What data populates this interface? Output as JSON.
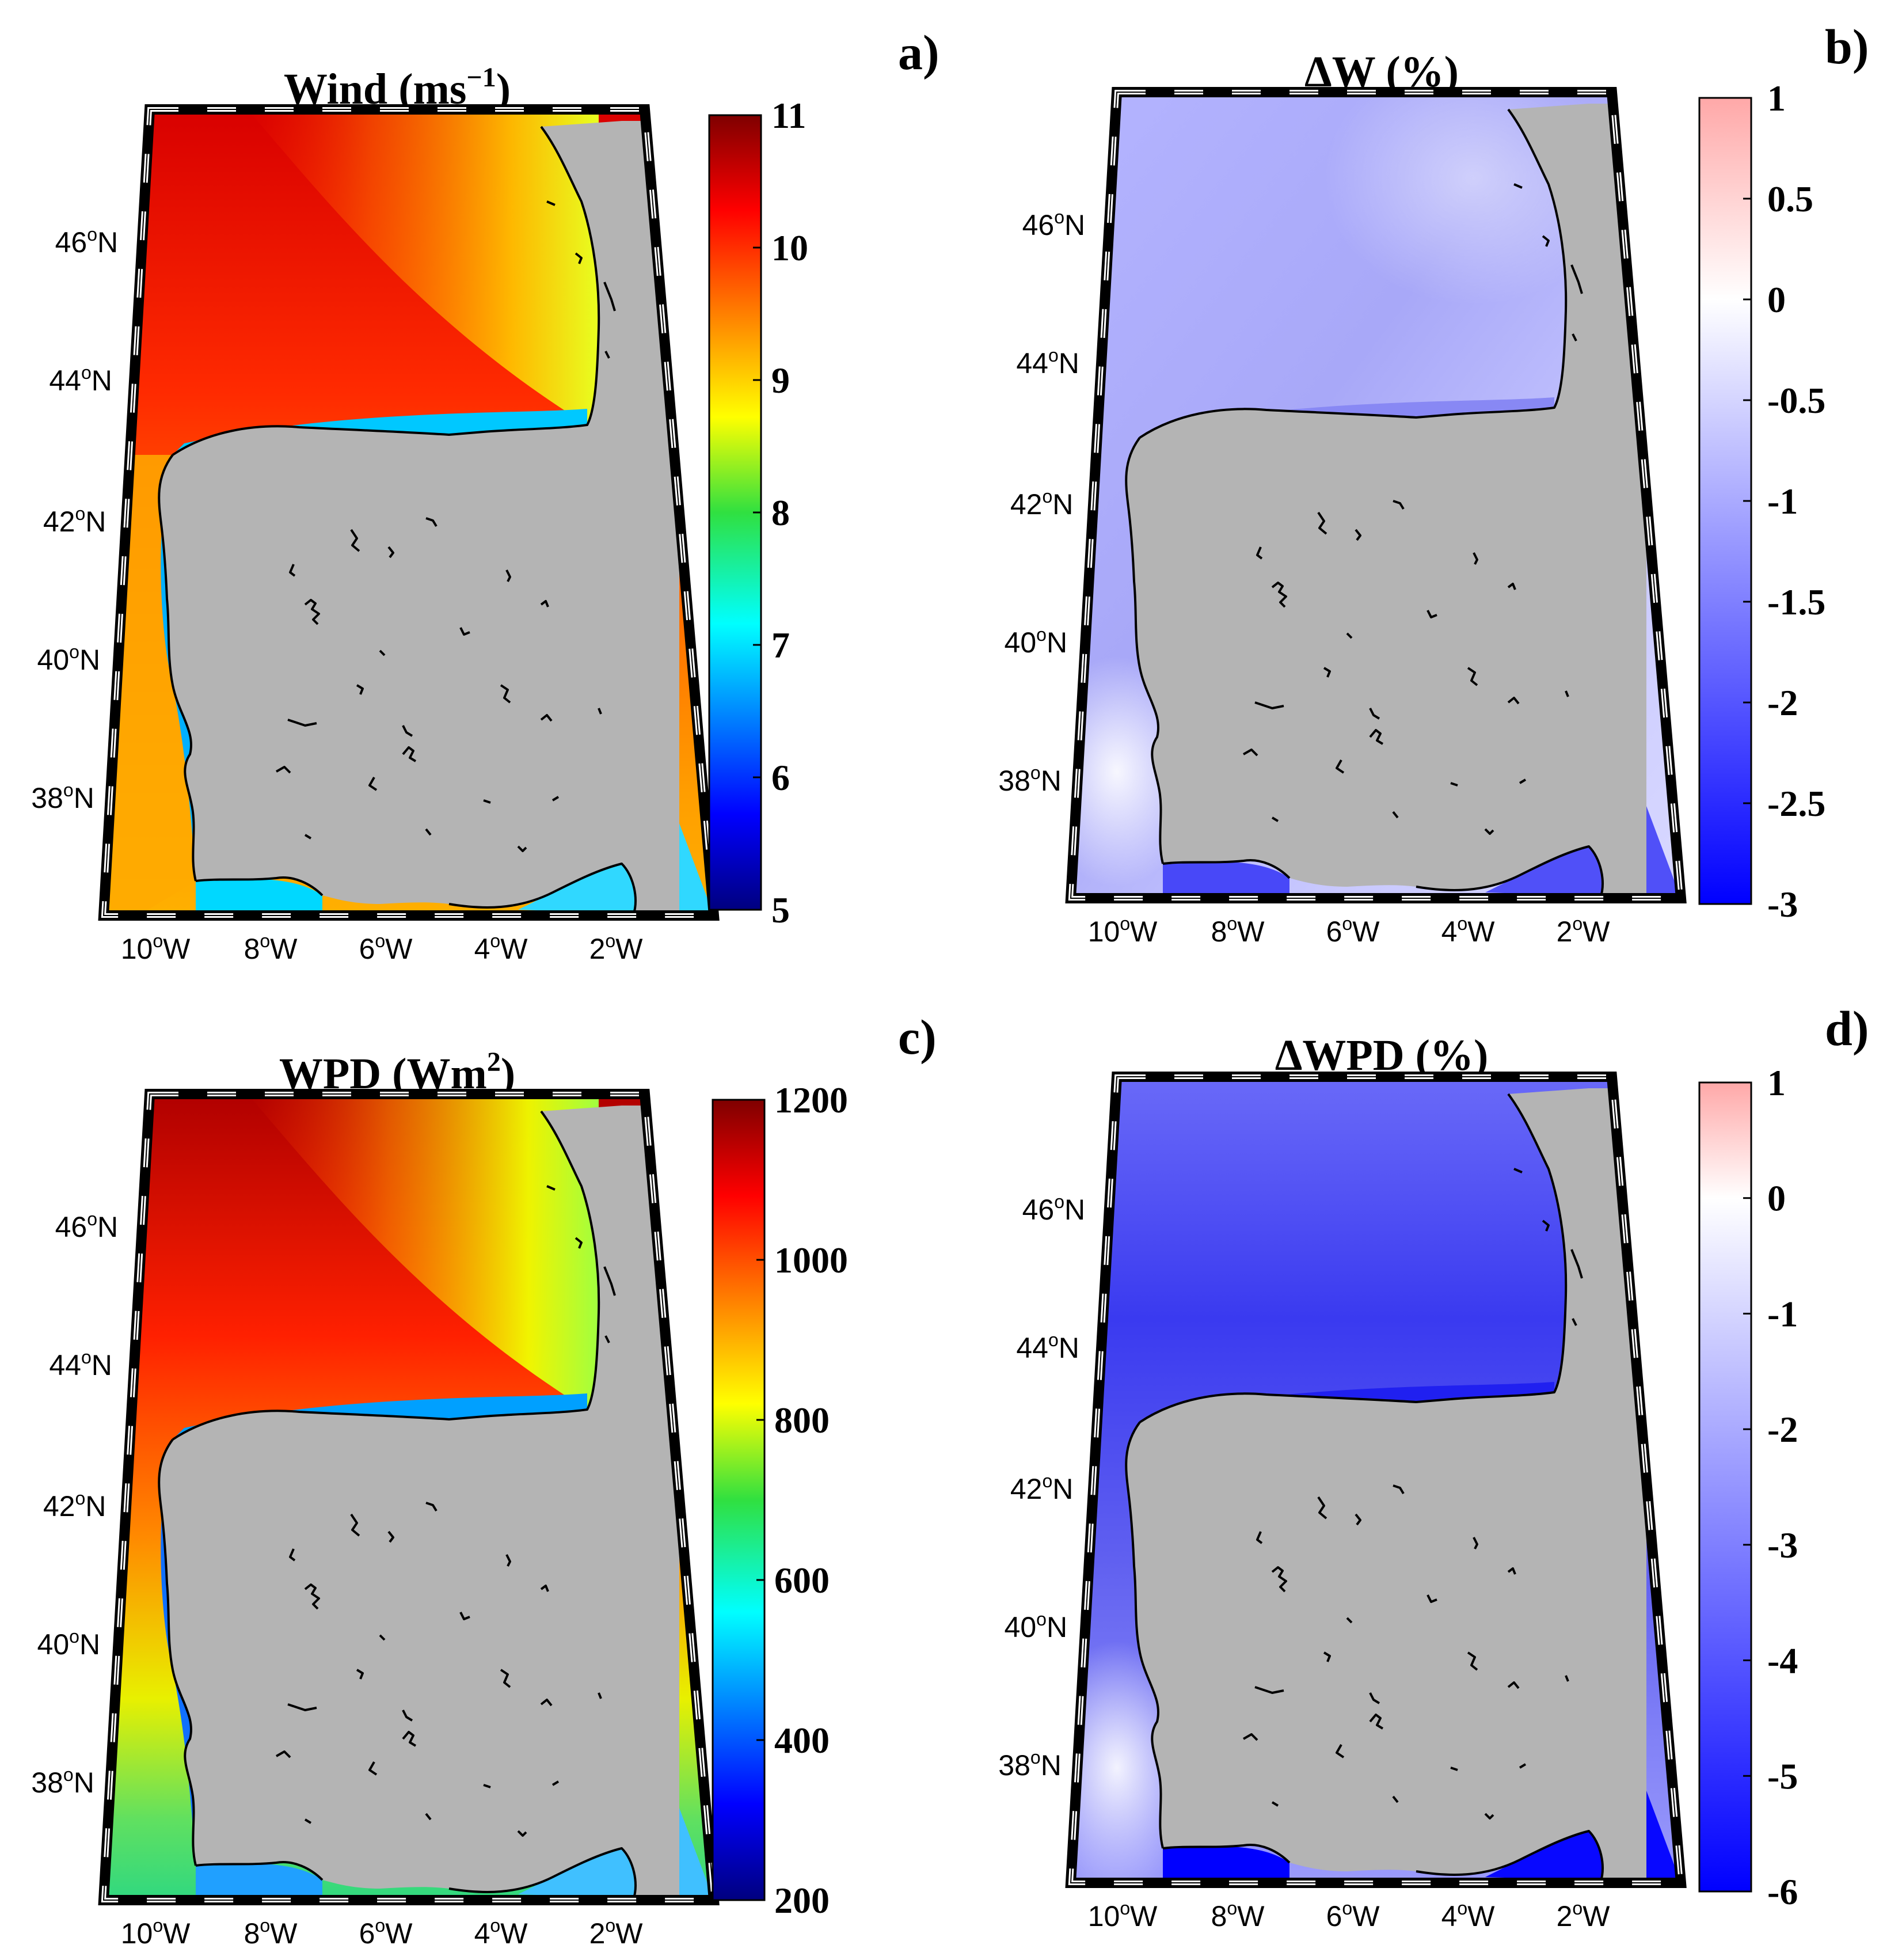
{
  "figure": {
    "panels": [
      {
        "id": "a",
        "label": "a)",
        "title_main": "Wind (ms",
        "title_sup": "−1",
        "title_end": ")",
        "colormap": "jet",
        "field": "wind",
        "colorbar": {
          "min": 5,
          "max": 11,
          "ticks": [
            "11",
            "10",
            "9",
            "8",
            "7",
            "6",
            "5"
          ]
        }
      },
      {
        "id": "b",
        "label": "b)",
        "title_main": "ΔW (%)",
        "title_sup": "",
        "title_end": "",
        "colormap": "bwr",
        "field": "dw",
        "colorbar": {
          "min": -3,
          "max": 1,
          "ticks": [
            "1",
            "0.5",
            "0",
            "-0.5",
            "-1",
            "-1.5",
            "-2",
            "-2.5",
            "-3"
          ]
        }
      },
      {
        "id": "c",
        "label": "c)",
        "title_main": "WPD (Wm",
        "title_sup": "2",
        "title_end": ")",
        "colormap": "jet",
        "field": "wpd",
        "colorbar": {
          "min": 200,
          "max": 1200,
          "ticks": [
            "1200",
            "1000",
            "800",
            "600",
            "400",
            "200"
          ]
        }
      },
      {
        "id": "d",
        "label": "d)",
        "title_main": "ΔWPD (%)",
        "title_sup": "",
        "title_end": "",
        "colormap": "bwr",
        "field": "dwpd",
        "colorbar": {
          "min": -6,
          "max": 1,
          "ticks": [
            "1",
            "0",
            "-1",
            "-2",
            "-3",
            "-4",
            "-5",
            "-6"
          ]
        }
      }
    ],
    "lat_ticks": [
      "46",
      "44",
      "42",
      "40",
      "38"
    ],
    "lon_ticks": [
      "10",
      "8",
      "6",
      "4",
      "2"
    ],
    "lat_suffix": "N",
    "lon_suffix": "W",
    "degree_mark": "o",
    "colors": {
      "land": "#b4b4b4",
      "coast": "#000000",
      "frame": "#000000"
    }
  }
}
